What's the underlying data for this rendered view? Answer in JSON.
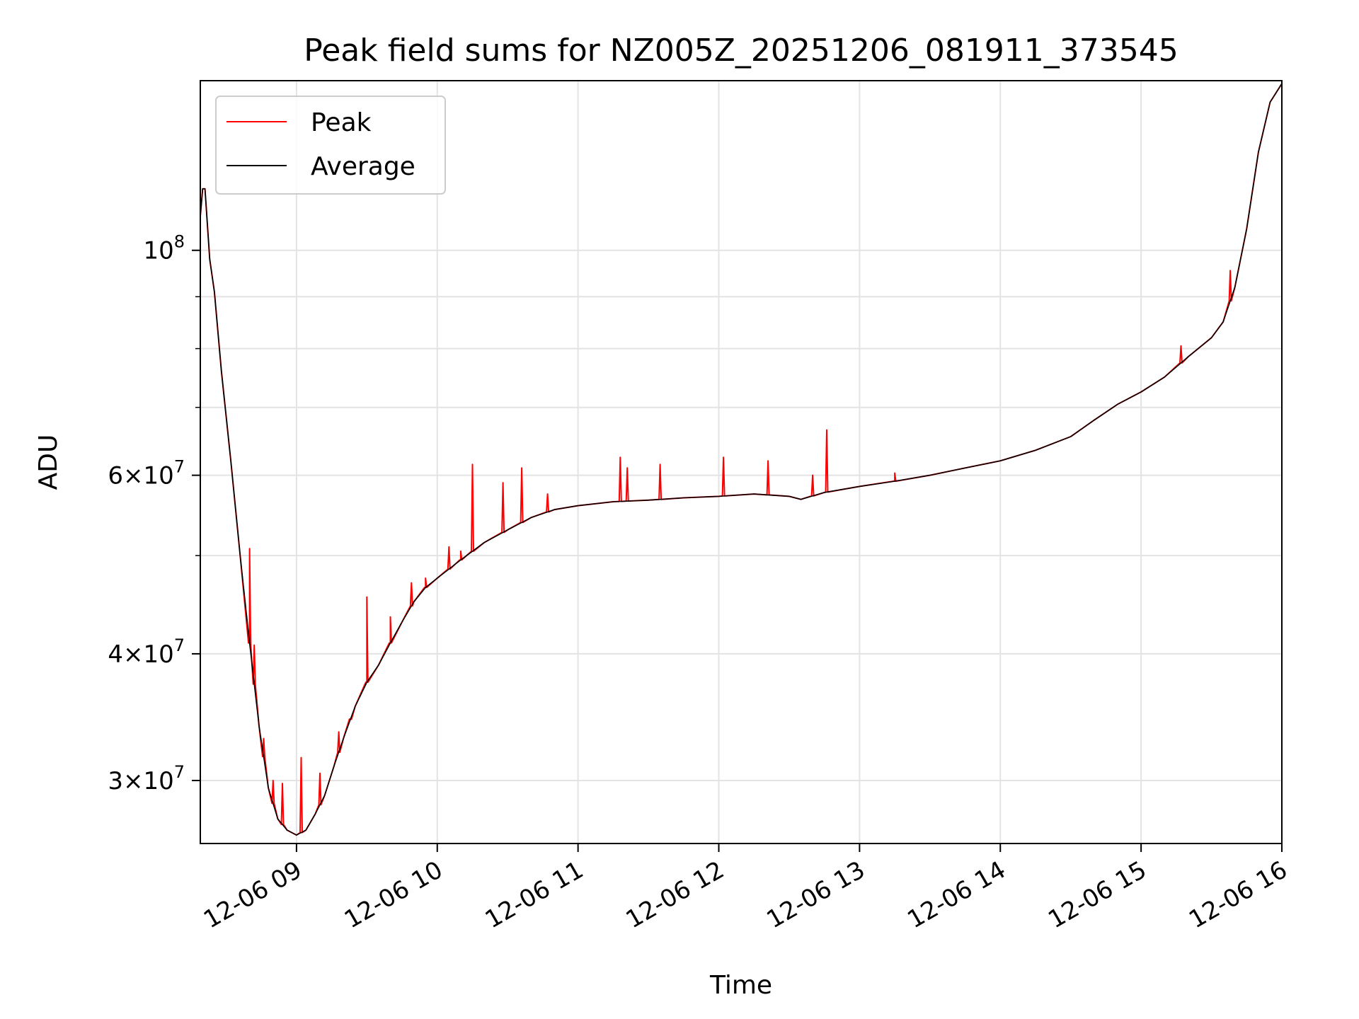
{
  "chart_data": {
    "type": "line",
    "title": "Peak field sums for NZ005Z_20251206_081911_373545",
    "xlabel": "Time",
    "ylabel": "ADU",
    "y_scale": "log",
    "ylim": [
      26000000,
      147000000
    ],
    "xlim": [
      "2025-12-06 08:19",
      "2025-12-06 16:00"
    ],
    "x_ticks": [
      {
        "value": "2025-12-06 09:00",
        "label": "12-06 09"
      },
      {
        "value": "2025-12-06 10:00",
        "label": "12-06 10"
      },
      {
        "value": "2025-12-06 11:00",
        "label": "12-06 11"
      },
      {
        "value": "2025-12-06 12:00",
        "label": "12-06 12"
      },
      {
        "value": "2025-12-06 13:00",
        "label": "12-06 13"
      },
      {
        "value": "2025-12-06 14:00",
        "label": "12-06 14"
      },
      {
        "value": "2025-12-06 15:00",
        "label": "12-06 15"
      },
      {
        "value": "2025-12-06 16:00",
        "label": "12-06 16"
      }
    ],
    "y_ticks": [
      {
        "value": 30000000,
        "mantissa": "3",
        "exp": "7"
      },
      {
        "value": 40000000,
        "mantissa": "4",
        "exp": "7"
      },
      {
        "value": 60000000,
        "mantissa": "6",
        "exp": "7"
      },
      {
        "value": 100000000,
        "mantissa": "",
        "exp": "8"
      }
    ],
    "y_minor_ticks": [
      50000000,
      70000000,
      80000000,
      90000000
    ],
    "grid": true,
    "legend_position": "top-left",
    "legend": [
      {
        "name": "Peak",
        "color": "#ff0000"
      },
      {
        "name": "Average",
        "color": "#000000"
      }
    ],
    "series": [
      {
        "name": "Average",
        "color": "#000000",
        "points": [
          [
            "2025-12-06 08:19",
            108000000
          ],
          [
            "2025-12-06 08:20",
            115000000
          ],
          [
            "2025-12-06 08:21",
            115000000
          ],
          [
            "2025-12-06 08:23",
            98000000
          ],
          [
            "2025-12-06 08:25",
            91000000
          ],
          [
            "2025-12-06 08:28",
            76000000
          ],
          [
            "2025-12-06 08:32",
            62000000
          ],
          [
            "2025-12-06 08:36",
            50000000
          ],
          [
            "2025-12-06 08:40",
            41000000
          ],
          [
            "2025-12-06 08:44",
            34000000
          ],
          [
            "2025-12-06 08:48",
            29500000
          ],
          [
            "2025-12-06 08:52",
            27500000
          ],
          [
            "2025-12-06 08:56",
            26800000
          ],
          [
            "2025-12-06 09:00",
            26500000
          ],
          [
            "2025-12-06 09:04",
            26800000
          ],
          [
            "2025-12-06 09:08",
            27800000
          ],
          [
            "2025-12-06 09:12",
            29000000
          ],
          [
            "2025-12-06 09:16",
            31000000
          ],
          [
            "2025-12-06 09:20",
            33000000
          ],
          [
            "2025-12-06 09:25",
            35500000
          ],
          [
            "2025-12-06 09:30",
            37500000
          ],
          [
            "2025-12-06 09:35",
            39000000
          ],
          [
            "2025-12-06 09:40",
            41000000
          ],
          [
            "2025-12-06 09:45",
            43000000
          ],
          [
            "2025-12-06 09:50",
            45000000
          ],
          [
            "2025-12-06 09:55",
            46500000
          ],
          [
            "2025-12-06 10:00",
            47500000
          ],
          [
            "2025-12-06 10:10",
            49500000
          ],
          [
            "2025-12-06 10:20",
            51500000
          ],
          [
            "2025-12-06 10:30",
            53000000
          ],
          [
            "2025-12-06 10:40",
            54500000
          ],
          [
            "2025-12-06 10:50",
            55500000
          ],
          [
            "2025-12-06 11:00",
            56000000
          ],
          [
            "2025-12-06 11:15",
            56500000
          ],
          [
            "2025-12-06 11:30",
            56700000
          ],
          [
            "2025-12-06 11:45",
            57000000
          ],
          [
            "2025-12-06 12:00",
            57200000
          ],
          [
            "2025-12-06 12:15",
            57500000
          ],
          [
            "2025-12-06 12:30",
            57200000
          ],
          [
            "2025-12-06 12:35",
            56800000
          ],
          [
            "2025-12-06 12:45",
            57700000
          ],
          [
            "2025-12-06 13:00",
            58500000
          ],
          [
            "2025-12-06 13:15",
            59200000
          ],
          [
            "2025-12-06 13:30",
            60000000
          ],
          [
            "2025-12-06 13:45",
            61000000
          ],
          [
            "2025-12-06 14:00",
            62000000
          ],
          [
            "2025-12-06 14:15",
            63500000
          ],
          [
            "2025-12-06 14:30",
            65500000
          ],
          [
            "2025-12-06 14:40",
            68000000
          ],
          [
            "2025-12-06 14:50",
            70500000
          ],
          [
            "2025-12-06 15:00",
            72500000
          ],
          [
            "2025-12-06 15:10",
            75000000
          ],
          [
            "2025-12-06 15:20",
            78500000
          ],
          [
            "2025-12-06 15:30",
            82000000
          ],
          [
            "2025-12-06 15:35",
            85000000
          ],
          [
            "2025-12-06 15:40",
            92000000
          ],
          [
            "2025-12-06 15:45",
            105000000
          ],
          [
            "2025-12-06 15:50",
            125000000
          ],
          [
            "2025-12-06 15:55",
            140000000
          ],
          [
            "2025-12-06 16:00",
            146000000
          ]
        ]
      },
      {
        "name": "Peak",
        "color": "#ff0000",
        "spikes": [
          [
            "2025-12-06 08:40",
            50800000
          ],
          [
            "2025-12-06 08:42",
            40800000
          ],
          [
            "2025-12-06 08:46",
            33000000
          ],
          [
            "2025-12-06 08:50",
            30000000
          ],
          [
            "2025-12-06 08:54",
            29800000
          ],
          [
            "2025-12-06 09:02",
            31600000
          ],
          [
            "2025-12-06 09:10",
            30500000
          ],
          [
            "2025-12-06 09:18",
            33500000
          ],
          [
            "2025-12-06 09:23",
            34500000
          ],
          [
            "2025-12-06 09:30",
            45500000
          ],
          [
            "2025-12-06 09:40",
            43500000
          ],
          [
            "2025-12-06 09:49",
            47000000
          ],
          [
            "2025-12-06 09:55",
            47500000
          ],
          [
            "2025-12-06 10:05",
            51000000
          ],
          [
            "2025-12-06 10:10",
            50500000
          ],
          [
            "2025-12-06 10:15",
            61500000
          ],
          [
            "2025-12-06 10:28",
            59000000
          ],
          [
            "2025-12-06 10:36",
            61000000
          ],
          [
            "2025-12-06 10:47",
            57500000
          ],
          [
            "2025-12-06 11:18",
            62500000
          ],
          [
            "2025-12-06 11:21",
            61000000
          ],
          [
            "2025-12-06 11:35",
            61500000
          ],
          [
            "2025-12-06 12:02",
            62500000
          ],
          [
            "2025-12-06 12:21",
            62000000
          ],
          [
            "2025-12-06 12:40",
            60000000
          ],
          [
            "2025-12-06 12:46",
            66500000
          ],
          [
            "2025-12-06 13:15",
            60300000
          ],
          [
            "2025-12-06 15:17",
            80500000
          ],
          [
            "2025-12-06 15:38",
            95500000
          ]
        ]
      }
    ]
  }
}
